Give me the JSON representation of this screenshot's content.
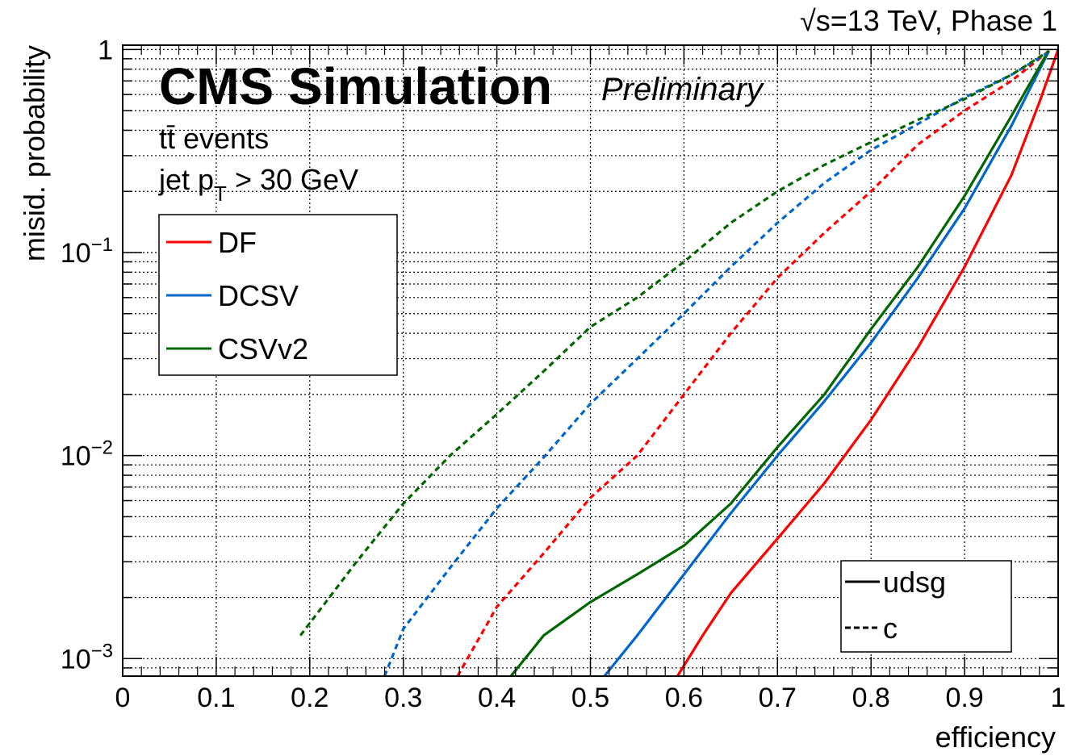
{
  "chart_data": {
    "type": "line",
    "title_left": "CMS Simulation",
    "title_left_suffix": "Preliminary",
    "title_right": "√s=13 TeV, Phase 1",
    "annotations": [
      "tt̄ events",
      "jet p",
      "T",
      " > 30 GeV"
    ],
    "xlabel": "efficiency",
    "ylabel": "misid. probability",
    "xlim": [
      0,
      1
    ],
    "ylim": [
      0.00082,
      1.05
    ],
    "y_scale": "log",
    "grid": true,
    "x_ticks": [
      "0",
      "0.1",
      "0.2",
      "0.3",
      "0.4",
      "0.5",
      "0.6",
      "0.7",
      "0.8",
      "0.9",
      "1"
    ],
    "y_ticks": [
      {
        "value": 1,
        "base": "1",
        "exp": ""
      },
      {
        "value": 0.1,
        "base": "10",
        "exp": "−1"
      },
      {
        "value": 0.01,
        "base": "10",
        "exp": "−2"
      },
      {
        "value": 0.001,
        "base": "10",
        "exp": "−3"
      }
    ],
    "legend_taggers": [
      {
        "name": "DF",
        "color": "#ff0000"
      },
      {
        "name": "DCSV",
        "color": "#0066cc"
      },
      {
        "name": "CSVv2",
        "color": "#006600"
      }
    ],
    "legend_styles": [
      {
        "name": "udsg",
        "style": "solid"
      },
      {
        "name": "c",
        "style": "dashed"
      }
    ],
    "series": [
      {
        "name": "DF",
        "flavour": "udsg",
        "color": "#ff0000",
        "dash": false,
        "x": [
          0.593,
          0.62,
          0.65,
          0.7,
          0.75,
          0.8,
          0.85,
          0.9,
          0.95,
          0.98,
          1.0
        ],
        "y": [
          0.00082,
          0.0013,
          0.0021,
          0.0039,
          0.0073,
          0.015,
          0.034,
          0.085,
          0.24,
          0.55,
          1.0
        ]
      },
      {
        "name": "DCSV",
        "flavour": "udsg",
        "color": "#0066cc",
        "dash": false,
        "x": [
          0.515,
          0.55,
          0.6,
          0.65,
          0.7,
          0.75,
          0.8,
          0.85,
          0.9,
          0.95,
          0.99
        ],
        "y": [
          0.00082,
          0.0013,
          0.0026,
          0.0052,
          0.01,
          0.0185,
          0.036,
          0.075,
          0.165,
          0.42,
          0.98
        ]
      },
      {
        "name": "CSVv2",
        "flavour": "udsg",
        "color": "#006600",
        "dash": false,
        "x": [
          0.415,
          0.45,
          0.5,
          0.55,
          0.6,
          0.65,
          0.7,
          0.75,
          0.8,
          0.85,
          0.9,
          0.95,
          0.99
        ],
        "y": [
          0.00082,
          0.0013,
          0.0019,
          0.0026,
          0.0036,
          0.0058,
          0.011,
          0.02,
          0.042,
          0.085,
          0.19,
          0.47,
          0.99
        ]
      },
      {
        "name": "DF",
        "flavour": "c",
        "color": "#ff0000",
        "dash": true,
        "x": [
          0.358,
          0.4,
          0.45,
          0.5,
          0.55,
          0.6,
          0.65,
          0.7,
          0.75,
          0.8,
          0.85,
          0.9,
          0.95,
          0.99
        ],
        "y": [
          0.00082,
          0.0018,
          0.0033,
          0.0062,
          0.01,
          0.02,
          0.04,
          0.075,
          0.125,
          0.2,
          0.34,
          0.5,
          0.7,
          0.98
        ]
      },
      {
        "name": "DCSV",
        "flavour": "c",
        "color": "#0066cc",
        "dash": true,
        "x": [
          0.28,
          0.3,
          0.35,
          0.4,
          0.45,
          0.5,
          0.55,
          0.6,
          0.65,
          0.7,
          0.75,
          0.8,
          0.85,
          0.9,
          0.95,
          0.99
        ],
        "y": [
          0.00082,
          0.0014,
          0.0028,
          0.0055,
          0.0098,
          0.018,
          0.03,
          0.05,
          0.085,
          0.14,
          0.22,
          0.32,
          0.43,
          0.58,
          0.75,
          0.97
        ]
      },
      {
        "name": "CSVv2",
        "flavour": "c",
        "color": "#006600",
        "dash": true,
        "x": [
          0.19,
          0.25,
          0.3,
          0.35,
          0.4,
          0.45,
          0.5,
          0.55,
          0.6,
          0.65,
          0.7,
          0.75,
          0.8,
          0.85,
          0.9,
          0.95,
          0.99
        ],
        "y": [
          0.0013,
          0.003,
          0.0058,
          0.01,
          0.016,
          0.026,
          0.043,
          0.06,
          0.09,
          0.14,
          0.2,
          0.27,
          0.35,
          0.45,
          0.57,
          0.75,
          0.98
        ]
      }
    ]
  }
}
